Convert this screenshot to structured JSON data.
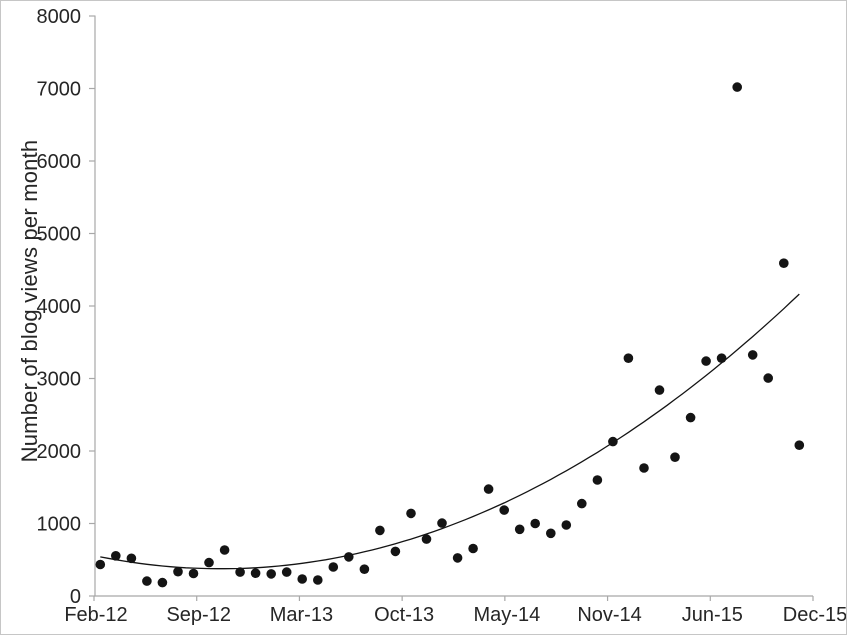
{
  "chart_data": {
    "type": "scatter",
    "title": "",
    "xlabel": "",
    "ylabel": "Number of blog views per month",
    "ylim": [
      0,
      8000
    ],
    "y_ticks": [
      0,
      1000,
      2000,
      3000,
      4000,
      5000,
      6000,
      7000,
      8000
    ],
    "x_tick_labels": [
      "Feb-12",
      "Sep-12",
      "Mar-13",
      "Oct-13",
      "May-14",
      "Nov-14",
      "Jun-15",
      "Dec-15"
    ],
    "grid": false,
    "legend_position": "none",
    "marker": "filled-circle",
    "marker_color": "#141414",
    "x": [
      "Feb-12",
      "Mar-12",
      "Apr-12",
      "May-12",
      "Jun-12",
      "Jul-12",
      "Aug-12",
      "Sep-12",
      "Oct-12",
      "Nov-12",
      "Dec-12",
      "Jan-13",
      "Feb-13",
      "Mar-13",
      "Apr-13",
      "May-13",
      "Jun-13",
      "Jul-13",
      "Aug-13",
      "Sep-13",
      "Oct-13",
      "Nov-13",
      "Dec-13",
      "Jan-14",
      "Feb-14",
      "Mar-14",
      "Apr-14",
      "May-14",
      "Jun-14",
      "Jul-14",
      "Aug-14",
      "Sep-14",
      "Oct-14",
      "Nov-14",
      "Dec-14",
      "Jan-15",
      "Feb-15",
      "Mar-15",
      "Apr-15",
      "May-15",
      "Jun-15",
      "Jul-15",
      "Aug-15",
      "Sep-15",
      "Oct-15",
      "Nov-15"
    ],
    "values": [
      435,
      555,
      520,
      205,
      185,
      335,
      310,
      460,
      635,
      330,
      315,
      305,
      330,
      235,
      220,
      400,
      540,
      370,
      905,
      615,
      1140,
      785,
      1005,
      525,
      655,
      1475,
      1185,
      920,
      1000,
      865,
      980,
      1275,
      1600,
      2130,
      3280,
      1765,
      2840,
      1915,
      2460,
      3240,
      3280,
      7020,
      3325,
      3005,
      4590,
      2080
    ],
    "trendline": {
      "type": "polynomial",
      "order": 2,
      "coefficients_by_month_index": {
        "a": 2.731,
        "b": -42.36,
        "c": 540
      },
      "color": "#141414"
    }
  },
  "colors": {
    "background": "#ffffff",
    "border": "#c6c6c6",
    "axis": "#a8a8a8",
    "text": "#262626",
    "marker": "#141414",
    "trendline": "#141414"
  }
}
